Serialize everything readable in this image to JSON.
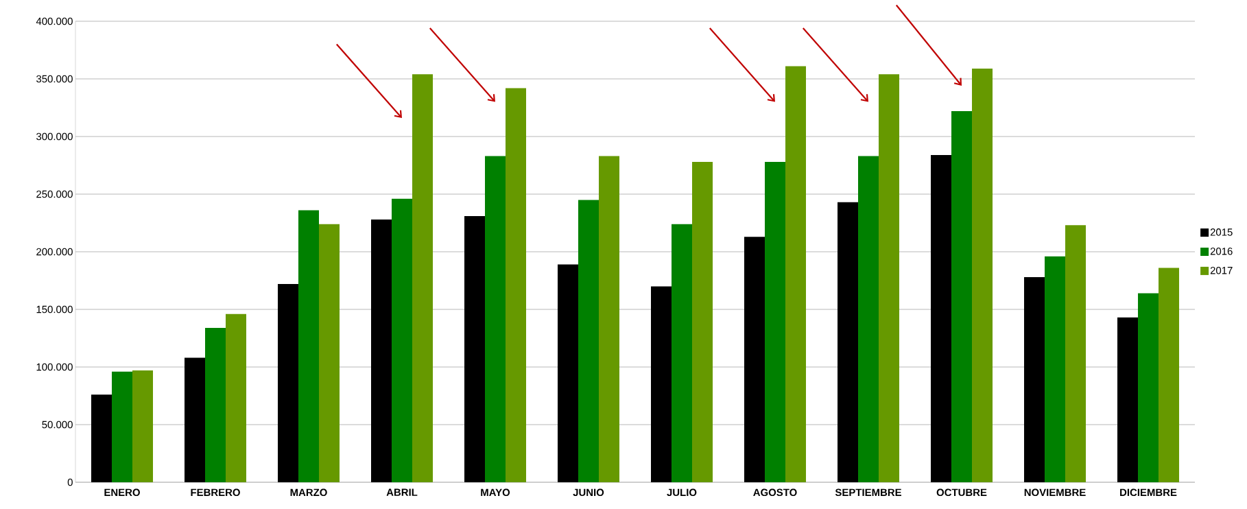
{
  "chart_data": {
    "type": "bar",
    "categories": [
      "ENERO",
      "FEBRERO",
      "MARZO",
      "ABRIL",
      "MAYO",
      "JUNIO",
      "JULIO",
      "AGOSTO",
      "SEPTIEMBRE",
      "OCTUBRE",
      "NOVIEMBRE",
      "DICIEMBRE"
    ],
    "series": [
      {
        "name": "2015",
        "color": "#000000",
        "values": [
          76000,
          108000,
          172000,
          228000,
          231000,
          189000,
          170000,
          213000,
          243000,
          284000,
          178000,
          143000
        ]
      },
      {
        "name": "2016",
        "color": "#008000",
        "values": [
          96000,
          134000,
          236000,
          246000,
          283000,
          245000,
          224000,
          278000,
          283000,
          322000,
          196000,
          164000
        ]
      },
      {
        "name": "2017",
        "color": "#669900",
        "values": [
          97000,
          146000,
          224000,
          354000,
          342000,
          283000,
          278000,
          361000,
          354000,
          359000,
          223000,
          186000
        ]
      }
    ],
    "ylim": [
      0,
      400000
    ],
    "yticks": [
      {
        "value": 0,
        "label": "0"
      },
      {
        "value": 50000,
        "label": "50.000"
      },
      {
        "value": 100000,
        "label": "100.000"
      },
      {
        "value": 150000,
        "label": "150.000"
      },
      {
        "value": 200000,
        "label": "200.000"
      },
      {
        "value": 250000,
        "label": "250.000"
      },
      {
        "value": 300000,
        "label": "300.000"
      },
      {
        "value": 350000,
        "label": "350.000"
      },
      {
        "value": 400000,
        "label": "400.000"
      }
    ],
    "grid": "y",
    "legend": "right"
  }
}
